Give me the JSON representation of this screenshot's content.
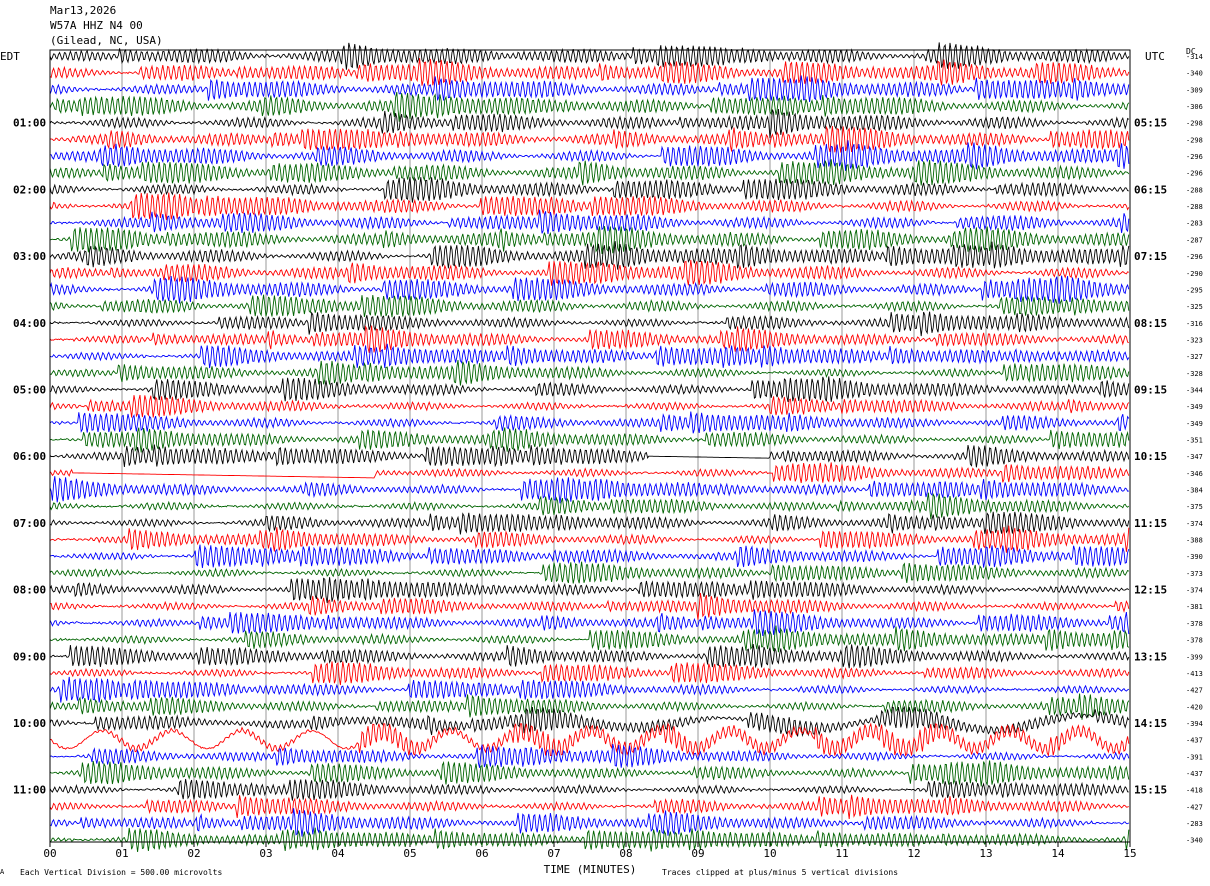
{
  "header": {
    "date": "Mar13,2026",
    "station": "W57A HHZ N4 00",
    "location": "(Gilead, NC, USA)"
  },
  "labels": {
    "left_tz": "EDT",
    "right_tz": "UTC",
    "dc": "DC"
  },
  "footer": {
    "scale": "Each Vertical Division =  500.00 microvolts",
    "clip": "Traces clipped at plus/minus 5 vertical divisions",
    "corner": "A"
  },
  "chart_data": {
    "type": "line",
    "title": "",
    "xlabel": "TIME (MINUTES)",
    "x_ticks": [
      "00",
      "01",
      "02",
      "03",
      "04",
      "05",
      "06",
      "07",
      "08",
      "09",
      "10",
      "11",
      "12",
      "13",
      "14",
      "15"
    ],
    "xlim": [
      0,
      15
    ],
    "grid": true,
    "series_colors": [
      "#000000",
      "#ff0000",
      "#0000ff",
      "#006400"
    ],
    "left_hour_labels": [
      "01:00",
      "02:00",
      "03:00",
      "04:00",
      "05:00",
      "06:00",
      "07:00",
      "08:00",
      "09:00",
      "10:00",
      "11:00"
    ],
    "right_hour_labels": [
      "05:15",
      "06:15",
      "07:15",
      "08:15",
      "09:15",
      "10:15",
      "11:15",
      "12:15",
      "13:15",
      "14:15",
      "15:15"
    ],
    "dc_offsets": [
      -314,
      -340,
      -309,
      -306,
      -298,
      -298,
      -296,
      -296,
      -288,
      -288,
      -283,
      -287,
      -296,
      -290,
      -295,
      -325,
      -316,
      -323,
      -327,
      -328,
      -344,
      -349,
      -349,
      -351,
      -347,
      -346,
      -384,
      -375,
      -374,
      -388,
      -390,
      -373,
      -374,
      -381,
      -378,
      -378,
      -399,
      -413,
      -427,
      -420,
      -394,
      -437,
      -391,
      -437,
      -418,
      -427,
      -283,
      -340
    ],
    "notable_events": [
      {
        "trace": 24,
        "description": "flat line",
        "x_start": 8.3,
        "x_end": 10.0
      },
      {
        "trace": 25,
        "description": "flat line",
        "x_start": 0.3,
        "x_end": 4.5
      },
      {
        "trace": 41,
        "description": "long-period swell",
        "x_start": 0,
        "x_end": 15
      }
    ]
  }
}
